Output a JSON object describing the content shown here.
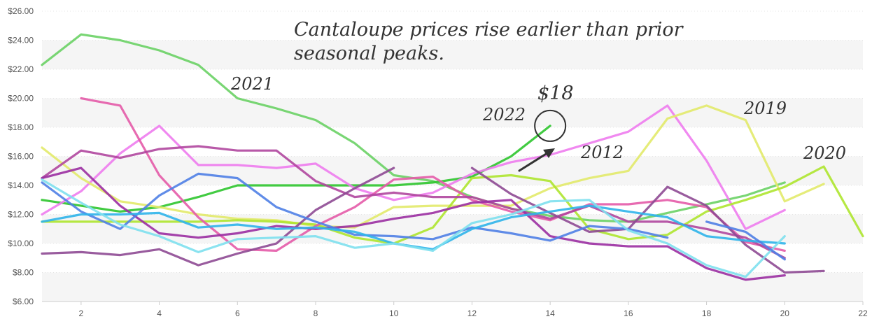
{
  "chart_data": {
    "type": "line",
    "title": "",
    "xlabel": "",
    "ylabel": "",
    "xlim": [
      1,
      22
    ],
    "ylim": [
      6,
      26
    ],
    "x_ticks": [
      2,
      4,
      6,
      8,
      10,
      12,
      14,
      16,
      18,
      20,
      22
    ],
    "y_ticks": [
      6,
      8,
      10,
      12,
      14,
      16,
      18,
      20,
      22,
      24,
      26
    ],
    "y_tick_labels": [
      "$6.00",
      "$8.00",
      "$10.00",
      "$12.00",
      "$14.00",
      "$16.00",
      "$18.00",
      "$20.00",
      "$22.00",
      "$24.00",
      "$26.00"
    ],
    "grid": "horizontal bands",
    "annotations": {
      "headline": [
        "Cantaloupe prices rise earlier than prior",
        "seasonal peaks."
      ],
      "current_value_label": "$18",
      "label_2021": "2021",
      "label_2022": "2022",
      "label_2012": "2012",
      "label_2019": "2019",
      "label_2020": "2020"
    },
    "highlight_point": {
      "x": 14,
      "y": 18.1
    },
    "series": [
      {
        "name": "2021",
        "color": "#6ad165",
        "x": [
          1,
          2,
          3,
          4,
          5,
          6,
          7,
          8,
          9,
          10,
          11,
          12,
          13,
          14,
          15,
          16,
          17,
          18,
          19,
          20
        ],
        "y": [
          22.3,
          24.4,
          24.0,
          23.3,
          22.3,
          20.0,
          19.3,
          18.5,
          16.9,
          14.7,
          14.3,
          13.2,
          12.4,
          11.9,
          11.6,
          11.5,
          12.1,
          12.7,
          13.3,
          14.2
        ]
      },
      {
        "name": "2022",
        "color": "#2ec52e",
        "x": [
          1,
          2,
          3,
          4,
          5,
          6,
          7,
          8,
          9,
          10,
          11,
          12,
          13,
          14
        ],
        "y": [
          13.0,
          12.6,
          12.2,
          12.5,
          13.2,
          14.0,
          14.0,
          14.0,
          14.0,
          14.0,
          14.2,
          14.6,
          16.0,
          18.1
        ]
      },
      {
        "name": "2012",
        "color": "#ee7cee",
        "x": [
          1,
          2,
          3,
          4,
          5,
          6,
          7,
          8,
          9,
          10,
          11,
          12,
          13,
          14,
          15,
          16,
          17,
          18,
          19,
          20
        ],
        "y": [
          12.0,
          13.6,
          16.2,
          18.1,
          15.4,
          15.4,
          15.2,
          15.5,
          13.8,
          13.0,
          13.5,
          14.8,
          15.6,
          16.1,
          16.9,
          17.7,
          19.5,
          15.7,
          11.0,
          12.3
        ]
      },
      {
        "name": "2019",
        "color": "#e2ea6a",
        "x": [
          1,
          2,
          3,
          4,
          5,
          6,
          7,
          8,
          9,
          10,
          11,
          12,
          13,
          14,
          15,
          16,
          17,
          18,
          19,
          20,
          21
        ],
        "y": [
          16.6,
          14.5,
          12.9,
          12.5,
          12.0,
          11.7,
          11.6,
          11.2,
          11.1,
          12.5,
          12.6,
          12.6,
          12.6,
          13.8,
          14.5,
          15.0,
          18.6,
          19.5,
          18.5,
          12.9,
          14.1
        ]
      },
      {
        "name": "2020",
        "color": "#aee62f",
        "x": [
          1,
          2,
          3,
          4,
          5,
          6,
          7,
          8,
          9,
          10,
          11,
          12,
          13,
          14,
          15,
          16,
          17,
          18,
          19,
          20,
          21,
          22
        ],
        "y": [
          11.5,
          11.5,
          11.5,
          11.5,
          11.5,
          11.6,
          11.5,
          11.3,
          10.4,
          10.0,
          11.1,
          14.5,
          14.7,
          14.3,
          11.0,
          10.3,
          10.6,
          12.2,
          13.0,
          13.9,
          15.3,
          10.5
        ]
      },
      {
        "name": "",
        "color": "#e45ba8",
        "x": [
          2,
          3,
          4,
          5,
          6,
          7,
          8,
          9,
          10,
          11,
          12,
          13,
          14,
          15,
          16,
          17,
          18,
          19,
          20
        ],
        "y": [
          20.0,
          19.5,
          14.7,
          11.8,
          9.6,
          9.5,
          11.2,
          12.5,
          14.4,
          14.6,
          13.0,
          12.2,
          11.6,
          12.7,
          12.7,
          13.0,
          12.5,
          10.1,
          9.5
        ]
      },
      {
        "name": "",
        "color": "#b0479e",
        "x": [
          1,
          2,
          3,
          4,
          5,
          6,
          7,
          8,
          9,
          10,
          11,
          12,
          13,
          14,
          15,
          16,
          17,
          18,
          19,
          20
        ],
        "y": [
          14.5,
          16.4,
          15.9,
          16.5,
          16.7,
          16.4,
          16.4,
          14.3,
          13.2,
          13.5,
          13.2,
          13.2,
          12.4,
          11.7,
          12.6,
          11.5,
          11.5,
          11.0,
          10.4,
          9.0
        ]
      },
      {
        "name": "",
        "color": "#9b2fa2",
        "x": [
          1,
          2,
          3,
          4,
          5,
          6,
          7,
          8,
          9,
          10,
          11,
          12,
          13,
          14,
          15,
          16,
          17,
          18,
          19,
          20
        ],
        "y": [
          14.5,
          15.2,
          12.6,
          10.7,
          10.4,
          10.7,
          11.2,
          11.0,
          11.2,
          11.7,
          12.1,
          12.8,
          13.0,
          10.5,
          10.0,
          9.8,
          9.8,
          8.3,
          7.5,
          7.8
        ]
      },
      {
        "name": "",
        "color": "#8e4a94",
        "x": [
          1,
          2,
          3,
          4,
          5,
          6,
          7,
          8,
          9,
          10
        ],
        "y": [
          9.3,
          9.4,
          9.2,
          9.6,
          8.5,
          9.3,
          10.0,
          12.3,
          13.8,
          15.2
        ]
      },
      {
        "name": "",
        "color": "#8e4a94",
        "x": [
          12,
          13,
          14,
          15,
          16,
          17,
          18,
          19,
          20,
          21
        ],
        "y": [
          15.2,
          13.4,
          12.1,
          10.8,
          11.0,
          13.9,
          12.6,
          9.9,
          8.0,
          8.1
        ]
      },
      {
        "name": "",
        "color": "#4f7fe6",
        "x": [
          1,
          2,
          3,
          4,
          5,
          6,
          7,
          8,
          9,
          10,
          11,
          12,
          13,
          14,
          15,
          16,
          17
        ],
        "y": [
          14.2,
          12.2,
          11.0,
          13.3,
          14.8,
          14.5,
          12.5,
          11.5,
          10.6,
          10.5,
          10.3,
          11.1,
          10.7,
          10.2,
          11.2,
          11.0,
          10.4
        ]
      },
      {
        "name": "",
        "color": "#2fb4ea",
        "x": [
          1,
          2,
          3,
          4,
          5,
          6,
          7,
          8,
          9,
          10,
          11,
          12,
          13,
          14,
          15,
          16,
          17,
          18,
          19,
          20
        ],
        "y": [
          11.5,
          12.0,
          12.0,
          12.1,
          11.1,
          11.3,
          11.0,
          11.1,
          10.8,
          10.0,
          9.6,
          11.0,
          11.8,
          12.2,
          12.6,
          12.2,
          11.8,
          10.5,
          10.2,
          10.0
        ]
      },
      {
        "name": "",
        "color": "#7ee0ee",
        "x": [
          1,
          2,
          3,
          4,
          5,
          6,
          7,
          8,
          9,
          10,
          11,
          12,
          13,
          14,
          15,
          16,
          17,
          18,
          19,
          20
        ],
        "y": [
          14.4,
          12.8,
          11.3,
          10.5,
          9.4,
          10.3,
          10.4,
          10.5,
          9.7,
          10.0,
          9.5,
          11.4,
          12.0,
          12.9,
          13.0,
          10.9,
          10.0,
          8.5,
          7.7,
          10.5
        ]
      },
      {
        "name": "",
        "color": "#4f7fe6",
        "x": [
          18,
          19,
          20
        ],
        "y": [
          11.5,
          10.8,
          8.9
        ]
      }
    ]
  }
}
